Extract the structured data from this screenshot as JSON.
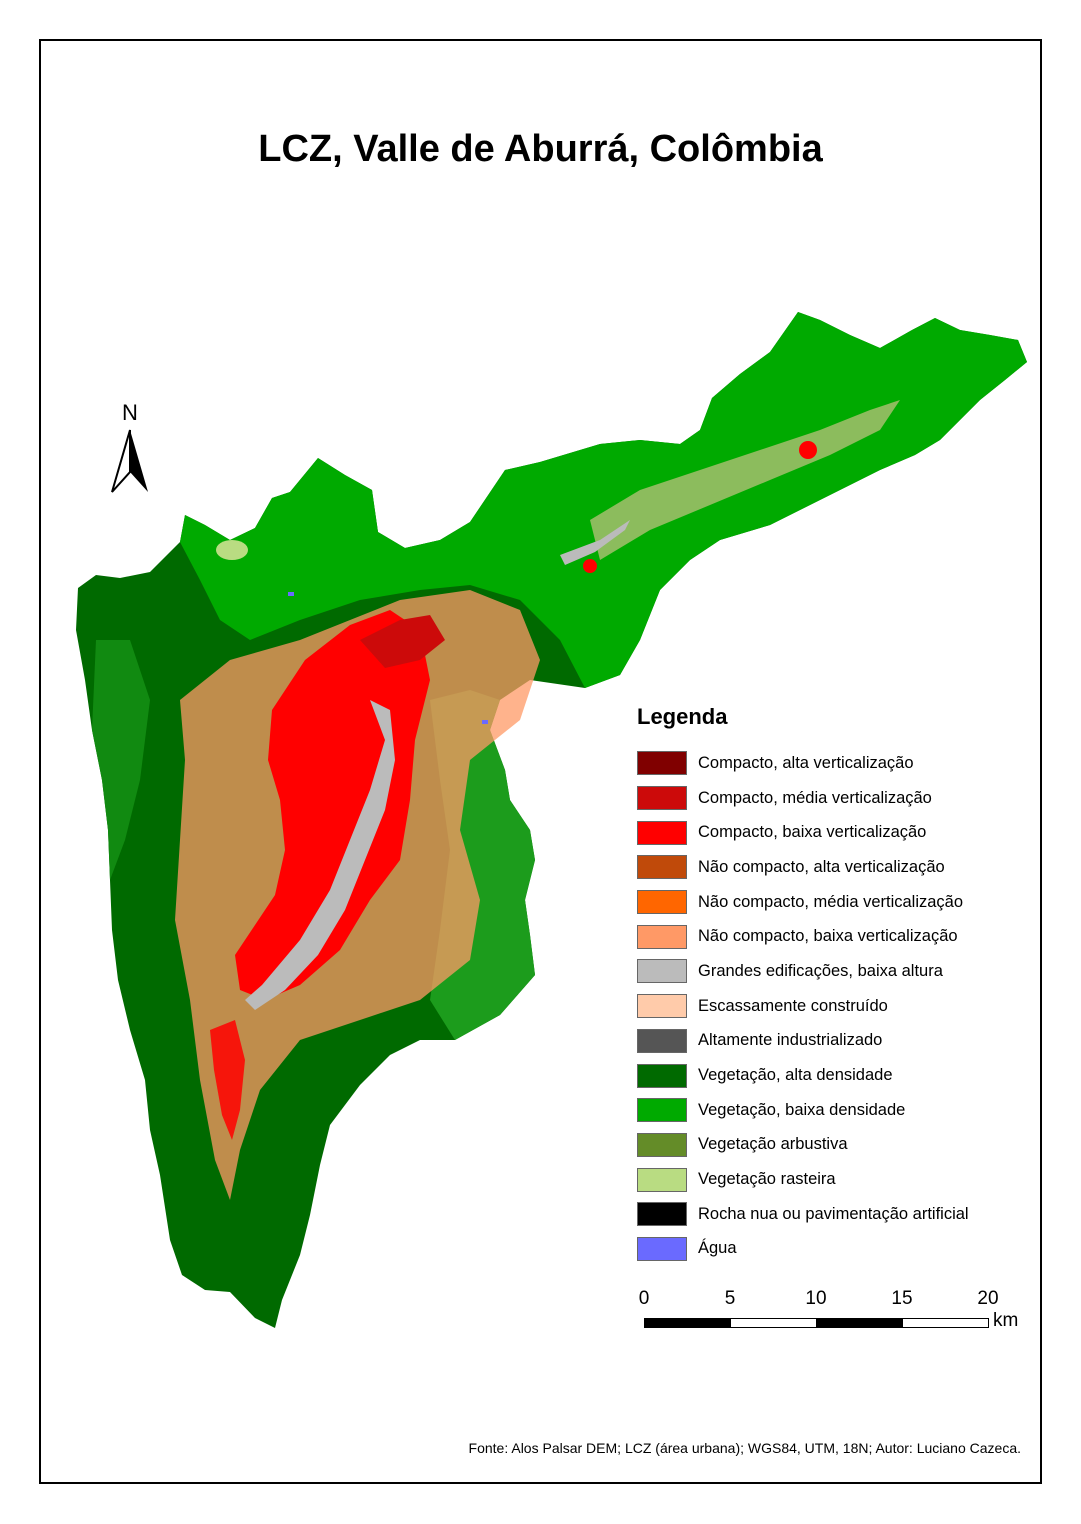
{
  "title": "LCZ, Valle de Aburrá, Colômbia",
  "north": {
    "letter": "N",
    "icon": "north-arrow-icon"
  },
  "legend": {
    "title": "Legenda",
    "items": [
      {
        "label": "Compacto, alta verticalização",
        "color": "#800000"
      },
      {
        "label": "Compacto, média verticalização",
        "color": "#cc0a0a"
      },
      {
        "label": "Compacto, baixa verticalização",
        "color": "#ff0000"
      },
      {
        "label": "Não compacto, alta verticalização",
        "color": "#c04a0a"
      },
      {
        "label": "Não compacto, média verticalização",
        "color": "#ff6600"
      },
      {
        "label": "Não compacto, baixa verticalização",
        "color": "#ff9966"
      },
      {
        "label": "Grandes edificações, baixa altura",
        "color": "#bbbbbb"
      },
      {
        "label": "Escassamente construído",
        "color": "#ffcbaa"
      },
      {
        "label": "Altamente industrializado",
        "color": "#555555"
      },
      {
        "label": "Vegetação, alta densidade",
        "color": "#006a00"
      },
      {
        "label": "Vegetação, baixa densidade",
        "color": "#00aa00"
      },
      {
        "label": "Vegetação arbustiva",
        "color": "#648c28"
      },
      {
        "label": "Vegetação rasteira",
        "color": "#b9dc82"
      },
      {
        "label": "Rocha nua ou pavimentação artificial",
        "color": "#000000"
      },
      {
        "label": "Água",
        "color": "#6a6aff"
      }
    ]
  },
  "scale": {
    "ticks": [
      "0",
      "5",
      "10",
      "15",
      "20"
    ],
    "unit": "km"
  },
  "source": "Fonte: Alos Palsar DEM; LCZ (área urbana); WGS84, UTM, 18N; Autor: Luciano Cazeca."
}
